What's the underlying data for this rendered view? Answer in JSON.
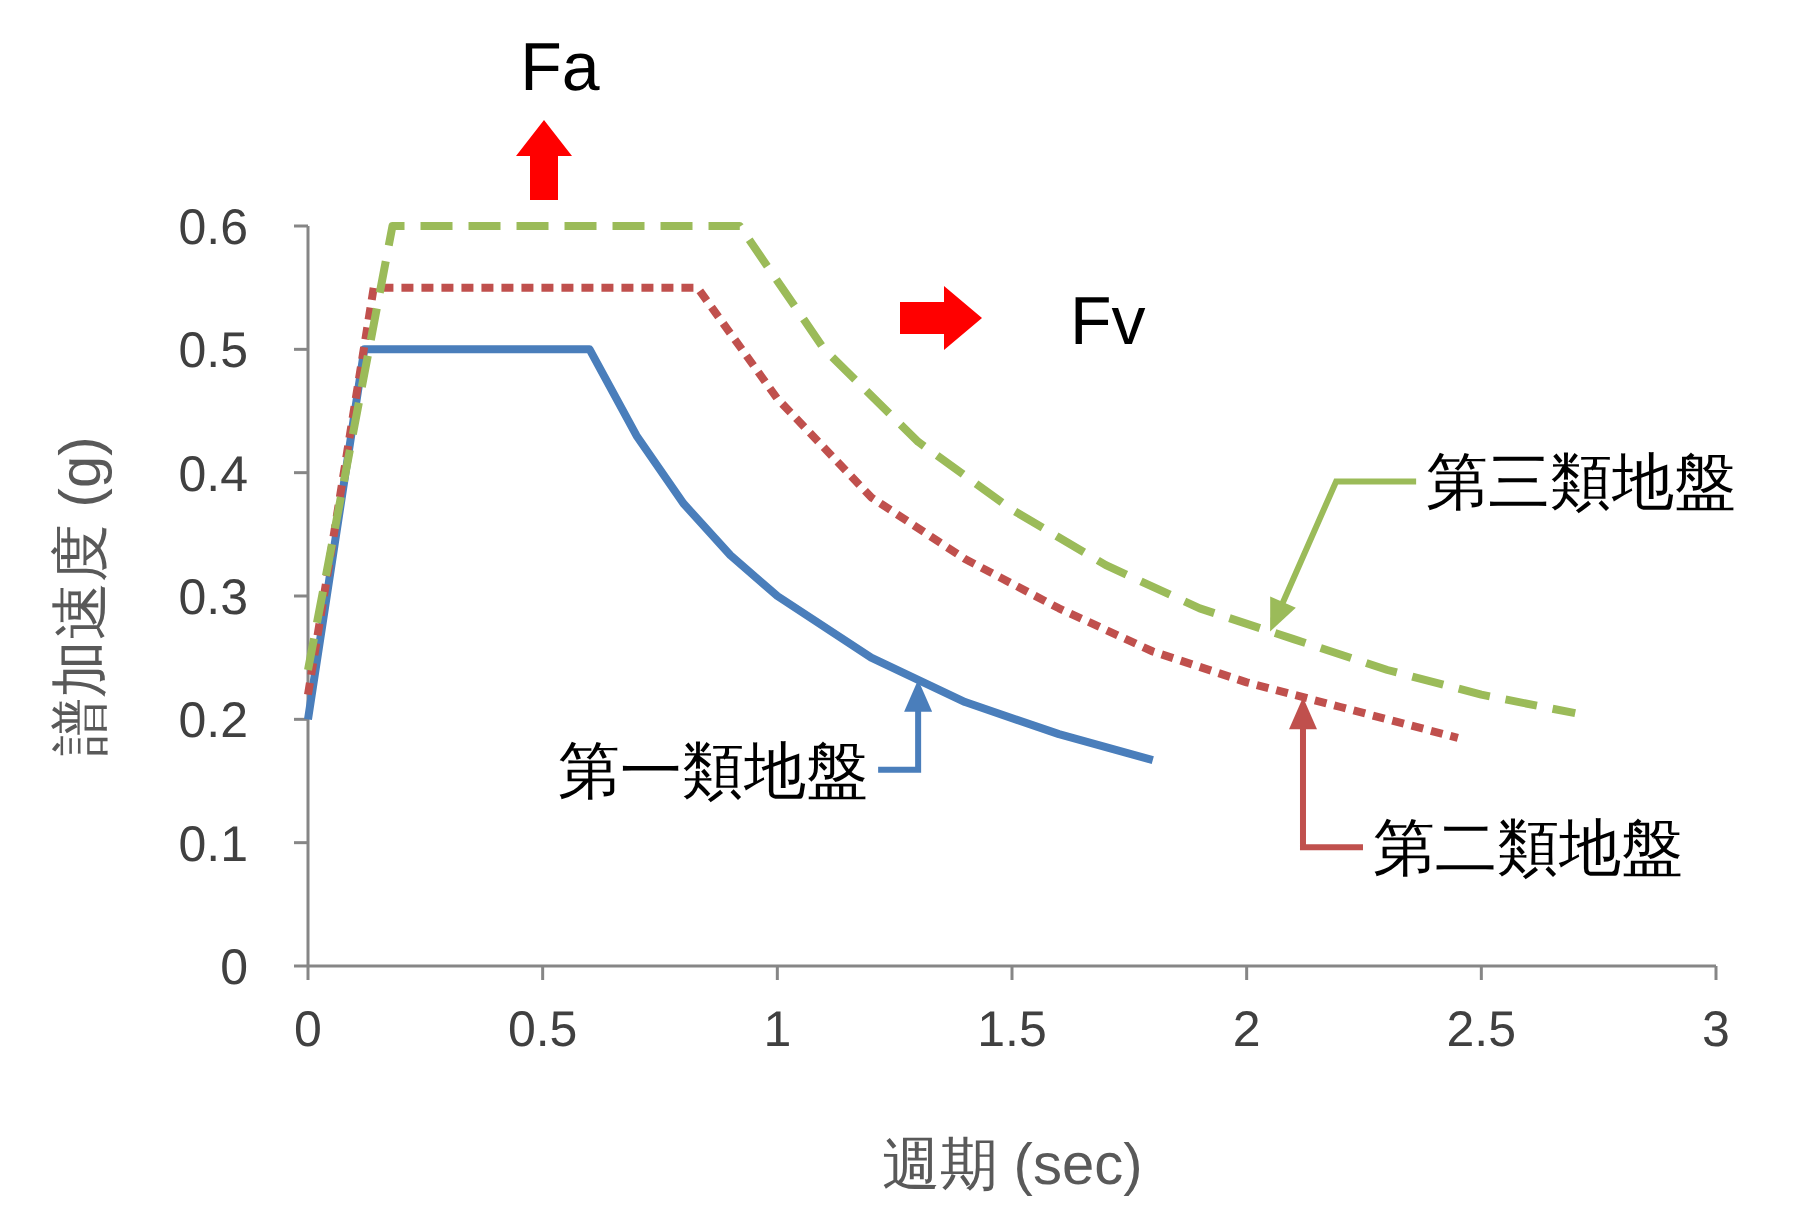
{
  "chart_data": {
    "type": "line",
    "xlabel": "週期 (sec)",
    "ylabel": "譜加速度 (g)",
    "xlim": [
      0,
      3
    ],
    "ylim": [
      0,
      0.6
    ],
    "xticks": [
      0,
      0.5,
      1,
      1.5,
      2,
      2.5,
      3
    ],
    "yticks": [
      0,
      0.1,
      0.2,
      0.3,
      0.4,
      0.5,
      0.6
    ],
    "grid": false,
    "annotations": [
      "Fa",
      "Fv"
    ],
    "series": [
      {
        "name": "第一類地盤",
        "color": "#4a7ebb",
        "line_style": "solid",
        "x": [
          0,
          0.12,
          0.6,
          0.7,
          0.8,
          0.9,
          1.0,
          1.2,
          1.4,
          1.6,
          1.8
        ],
        "values": [
          0.2,
          0.5,
          0.5,
          0.43,
          0.375,
          0.333,
          0.3,
          0.25,
          0.214,
          0.188,
          0.167
        ]
      },
      {
        "name": "第二類地盤",
        "color": "#c0504d",
        "line_style": "dotted",
        "x": [
          0,
          0.14,
          0.83,
          1.0,
          1.2,
          1.4,
          1.6,
          1.8,
          2.0,
          2.2,
          2.45
        ],
        "values": [
          0.22,
          0.55,
          0.55,
          0.46,
          0.38,
          0.33,
          0.29,
          0.255,
          0.23,
          0.21,
          0.185
        ]
      },
      {
        "name": "第三類地盤",
        "color": "#9bbb59",
        "line_style": "dashed",
        "x": [
          0,
          0.18,
          0.92,
          1.1,
          1.3,
          1.5,
          1.7,
          1.9,
          2.1,
          2.3,
          2.5,
          2.7
        ],
        "values": [
          0.24,
          0.6,
          0.6,
          0.5,
          0.425,
          0.37,
          0.325,
          0.29,
          0.265,
          0.24,
          0.22,
          0.205
        ]
      }
    ]
  }
}
